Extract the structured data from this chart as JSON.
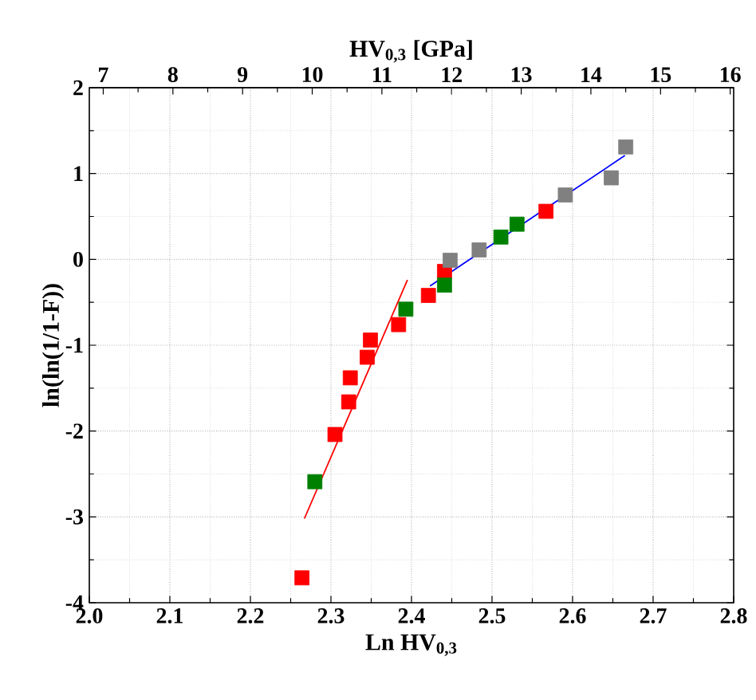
{
  "chart_data": {
    "type": "scatter",
    "xlabel": "Ln HV$_{0,3}$",
    "ylabel": "ln(ln(1/1-F))",
    "x2label": "HV$_{0,3}$ [GPa]",
    "xlim": [
      2.0,
      2.8
    ],
    "ylim": [
      -4,
      2
    ],
    "xticks": [
      {
        "value": 2.0,
        "label": "2.0"
      },
      {
        "value": 2.1,
        "label": "2.1"
      },
      {
        "value": 2.2,
        "label": "2.2"
      },
      {
        "value": 2.3,
        "label": "2.3"
      },
      {
        "value": 2.4,
        "label": "2.4"
      },
      {
        "value": 2.5,
        "label": "2.5"
      },
      {
        "value": 2.6,
        "label": "2.6"
      },
      {
        "value": 2.7,
        "label": "2.7"
      },
      {
        "value": 2.8,
        "label": "2.8"
      }
    ],
    "yticks": [
      -4,
      -3,
      -2,
      -1,
      0,
      1,
      2
    ],
    "x2lim": [
      6.8,
      16.05
    ],
    "x2ticks": [
      7,
      8,
      9,
      10,
      11,
      12,
      13,
      14,
      15,
      16
    ],
    "grid": true,
    "marker": "square",
    "series": [
      {
        "color": "#ff0000",
        "x": [
          2.264,
          2.305,
          2.322,
          2.324,
          2.345,
          2.349,
          2.384,
          2.421,
          2.441,
          2.567
        ],
        "values": [
          -3.71,
          -2.04,
          -1.66,
          -1.38,
          -1.14,
          -0.94,
          -0.76,
          -0.42,
          -0.14,
          0.56
        ]
      },
      {
        "color": "#008000",
        "x": [
          2.28,
          2.393,
          2.441,
          2.511,
          2.531
        ],
        "values": [
          -2.59,
          -0.58,
          -0.3,
          0.26,
          0.41
        ]
      },
      {
        "color": "#808080",
        "x": [
          2.448,
          2.484,
          2.591,
          2.648,
          2.666
        ],
        "values": [
          -0.01,
          0.11,
          0.75,
          0.95,
          1.31
        ]
      },
      {
        "type": "line",
        "marker": "none",
        "color": "#ff0000",
        "x": [
          2.267,
          2.395
        ],
        "values": [
          -3.02,
          -0.24
        ]
      },
      {
        "type": "line",
        "marker": "none",
        "color": "#0000ff",
        "x": [
          2.423,
          2.665
        ],
        "values": [
          -0.31,
          1.21
        ]
      }
    ]
  }
}
